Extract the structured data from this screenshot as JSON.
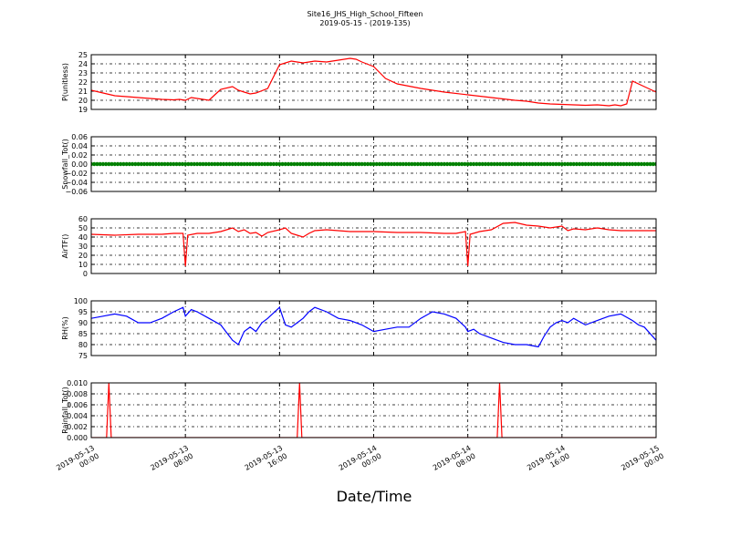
{
  "figure": {
    "title": "Site16_JHS_High_School_Fifteen",
    "subtitle": "2019-05-15 - (2019-135)",
    "xlabel": "Date/Time",
    "x_ticks": [
      {
        "t": 0,
        "line1": "2019-05-13",
        "line2": "00:00"
      },
      {
        "t": 8,
        "line1": "2019-05-13",
        "line2": "08:00"
      },
      {
        "t": 16,
        "line1": "2019-05-13",
        "line2": "16:00"
      },
      {
        "t": 24,
        "line1": "2019-05-14",
        "line2": "00:00"
      },
      {
        "t": 32,
        "line1": "2019-05-14",
        "line2": "08:00"
      },
      {
        "t": 40,
        "line1": "2019-05-14",
        "line2": "16:00"
      },
      {
        "t": 48,
        "line1": "2019-05-15",
        "line2": "00:00"
      }
    ],
    "xlim_hours": [
      0,
      48
    ]
  },
  "chart_data": [
    {
      "type": "line",
      "ylabel": "P(unitless)",
      "ylim": [
        19,
        25
      ],
      "yticks": [
        "19",
        "20",
        "21",
        "22",
        "23",
        "24",
        "25"
      ],
      "grid": true,
      "series": [
        {
          "color": "#ff0000",
          "x": [
            0,
            1,
            2,
            3,
            4,
            5,
            6,
            7,
            7.5,
            8,
            8.5,
            9,
            10,
            10.5,
            11,
            12,
            12.5,
            13,
            13.5,
            14,
            15,
            16,
            17,
            18,
            19,
            20,
            21,
            22,
            22.5,
            23,
            24,
            25,
            26,
            28,
            30,
            32,
            34,
            36,
            37,
            38,
            39,
            40,
            41,
            42,
            43,
            44,
            44.5,
            45,
            45.5,
            46,
            47,
            48
          ],
          "y": [
            21.1,
            20.8,
            20.5,
            20.4,
            20.3,
            20.2,
            20.1,
            20.05,
            20.1,
            20.0,
            20.3,
            20.2,
            20.0,
            20.6,
            21.2,
            21.5,
            21.1,
            20.9,
            20.7,
            20.8,
            21.3,
            23.9,
            24.3,
            24.1,
            24.3,
            24.2,
            24.4,
            24.6,
            24.5,
            24.2,
            23.7,
            22.4,
            21.8,
            21.3,
            20.9,
            20.6,
            20.3,
            20.0,
            19.9,
            19.7,
            19.6,
            19.55,
            19.5,
            19.45,
            19.5,
            19.4,
            19.5,
            19.4,
            19.6,
            22.1,
            21.5,
            20.9
          ]
        }
      ]
    },
    {
      "type": "scatter",
      "ylabel": "Snowfall_Tot()",
      "ylim": [
        -0.06,
        0.06
      ],
      "yticks": [
        "−0.06",
        "−0.04",
        "−0.02",
        "0.00",
        "0.02",
        "0.04",
        "0.06"
      ],
      "grid": true,
      "series": [
        {
          "color": "#008000",
          "x_range": [
            0,
            48
          ],
          "x_step": 0.25,
          "value": 0.0
        }
      ]
    },
    {
      "type": "line",
      "ylabel": "AirTF()",
      "ylim": [
        0,
        60
      ],
      "yticks": [
        "0",
        "10",
        "20",
        "30",
        "40",
        "50",
        "60"
      ],
      "grid": true,
      "series": [
        {
          "color": "#ff0000",
          "x": [
            0,
            2,
            4,
            6,
            7,
            7.8,
            8,
            8.2,
            9,
            10,
            11,
            12,
            12.5,
            13,
            13.5,
            14,
            14.5,
            15,
            16,
            16.5,
            17,
            17.5,
            18,
            18.5,
            19,
            20,
            22,
            24,
            26,
            28,
            30,
            31,
            31.8,
            32,
            32.2,
            33,
            34,
            35,
            36,
            37,
            38,
            39,
            40,
            40.5,
            41,
            42,
            43,
            44,
            45,
            46,
            47,
            48
          ],
          "y": [
            43,
            42,
            43,
            43,
            44,
            44,
            8,
            42,
            44,
            44,
            46,
            50,
            46,
            48,
            44,
            45,
            41,
            45,
            48,
            50,
            44,
            42,
            40,
            44,
            47,
            48,
            46,
            46,
            45,
            45,
            44,
            44,
            46,
            8,
            43,
            46,
            48,
            55,
            56,
            53,
            52,
            50,
            52,
            47,
            49,
            48,
            50,
            48,
            47,
            47,
            47,
            47
          ]
        }
      ]
    },
    {
      "type": "line",
      "ylabel": "RH(%)",
      "ylim": [
        75,
        100
      ],
      "yticks": [
        "75",
        "80",
        "85",
        "90",
        "95",
        "100"
      ],
      "grid": true,
      "series": [
        {
          "color": "#0000ff",
          "x": [
            0,
            1,
            2,
            3,
            4,
            5,
            6,
            7,
            7.8,
            8,
            8.5,
            9,
            10,
            11,
            12,
            12.5,
            13,
            13.5,
            14,
            14.5,
            15,
            16,
            16.5,
            17,
            17.5,
            18,
            18.5,
            19,
            20,
            21,
            22,
            23,
            24,
            25,
            26,
            27,
            28,
            29,
            30,
            31,
            31.8,
            32,
            32.5,
            33,
            34,
            35,
            36,
            37,
            38,
            38.5,
            39,
            39.5,
            40,
            40.5,
            41,
            42,
            43,
            44,
            45,
            46,
            46.5,
            47,
            48
          ],
          "y": [
            92,
            93,
            94,
            93,
            90,
            90,
            92,
            95,
            97,
            93,
            96,
            95,
            92,
            89,
            82,
            80,
            86,
            88,
            86,
            90,
            92,
            97,
            89,
            88,
            90,
            92,
            95,
            97,
            95,
            92,
            91,
            89,
            86,
            87,
            88,
            88,
            92,
            95,
            94,
            92,
            88,
            86,
            87,
            85,
            83,
            81,
            80,
            80,
            79,
            84,
            88,
            90,
            91,
            90,
            92,
            89,
            91,
            93,
            94,
            91,
            89,
            88,
            82
          ]
        }
      ]
    },
    {
      "type": "line",
      "ylabel": "Rainfall_Tot()",
      "ylim": [
        0.0,
        0.01
      ],
      "yticks": [
        "0.000",
        "0.002",
        "0.004",
        "0.006",
        "0.008",
        "0.010"
      ],
      "grid": true,
      "series": [
        {
          "color": "#ff0000",
          "x": [
            0,
            1.3,
            1.5,
            1.7,
            17.5,
            17.7,
            17.9,
            34.5,
            34.7,
            34.9,
            48
          ],
          "y": [
            0,
            0,
            0.01,
            0,
            0,
            0.01,
            0,
            0,
            0.01,
            0,
            0
          ]
        }
      ]
    }
  ]
}
